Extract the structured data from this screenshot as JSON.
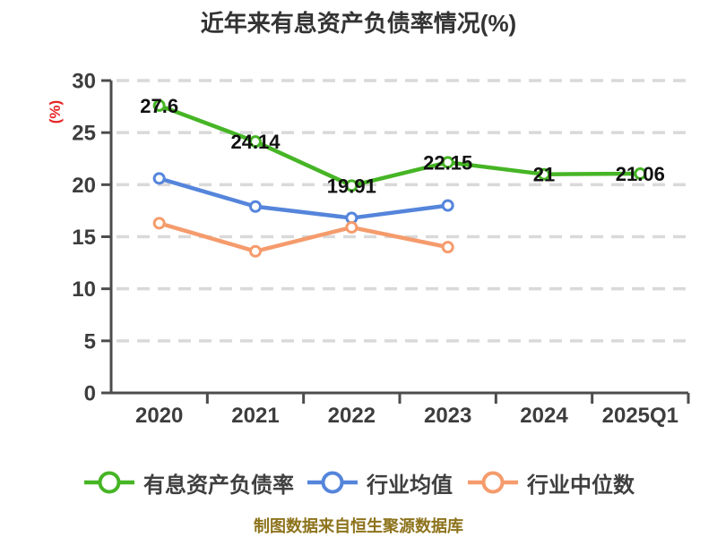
{
  "chart_data": {
    "type": "line",
    "title": "近年来有息资产负债率情况(%)",
    "ylabel": "(%)",
    "categories": [
      "2020",
      "2021",
      "2022",
      "2023",
      "2024",
      "2025Q1"
    ],
    "ylim": [
      0,
      30
    ],
    "yticks": [
      0,
      5,
      10,
      15,
      20,
      25,
      30
    ],
    "grid": "horizontal-dashed",
    "legend_position": "bottom",
    "series": [
      {
        "name": "有息资产负债率",
        "color": "#46b525",
        "values": [
          27.6,
          24.14,
          19.91,
          22.15,
          21,
          21.06
        ],
        "labels": [
          "27.6",
          "24.14",
          "19.91",
          "22.15",
          "21",
          "21.06"
        ]
      },
      {
        "name": "行业均值",
        "color": "#5585db",
        "values": [
          20.6,
          17.9,
          16.8,
          18,
          null,
          null
        ],
        "labels": null
      },
      {
        "name": "行业中位数",
        "color": "#f59b6c",
        "values": [
          16.3,
          13.6,
          15.9,
          14,
          null,
          null
        ],
        "labels": null
      }
    ],
    "source_note": "制图数据来自恒生聚源数据库"
  },
  "colors": {
    "axis": "#4c4c4c",
    "gridline": "#d9d9d9",
    "tick_label": "#3d3d3d",
    "data_label": "#111111",
    "title": "#333333",
    "ylabel_accent": "#e62526",
    "source_note": "#8d731c",
    "marker_fill": "#ffffff",
    "background": "#ffffff"
  }
}
